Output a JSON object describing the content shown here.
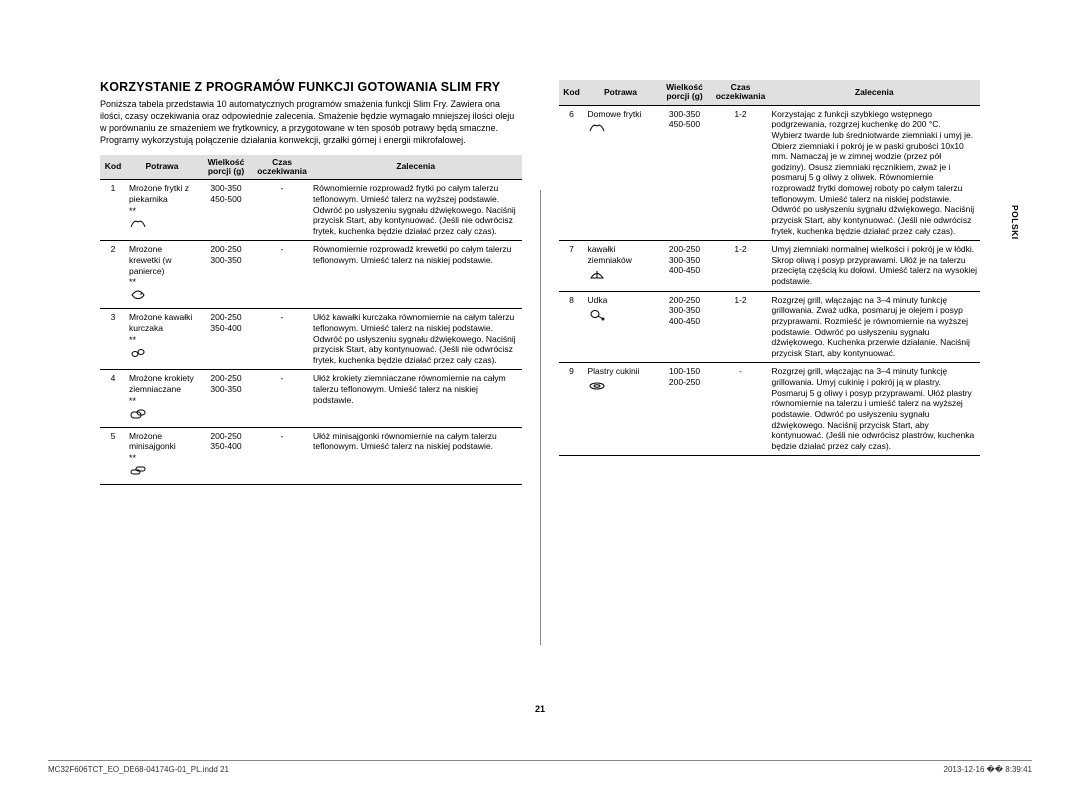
{
  "sideTab": "POLSKI",
  "pageNumber": "21",
  "footer": {
    "left": "MC32F606TCT_EO_DE68-04174G-01_PL.indd   21",
    "right": "2013-12-16   �� 8:39:41"
  },
  "section": {
    "title": "KORZYSTANIE Z PROGRAMÓW FUNKCJI GOTOWANIA SLIM FRY",
    "intro": "Poniższa tabela przedstawia 10 automatycznych programów smażenia funkcji Slim Fry. Zawiera ona ilości, czasy oczekiwania oraz odpowiednie zalecenia. Smażenie będzie wymagało mniejszej ilości oleju w porównaniu ze smażeniem we frytkownicy, a przygotowane w ten sposób potrawy będą smaczne. Programy wykorzystują połączenie działania konwekcji, grzałki górnej i energii mikrofalowej."
  },
  "headers": {
    "kod": "Kod",
    "potrawa": "Potrawa",
    "wielkosc1": "Wielkość",
    "wielkosc2": "porcji (g)",
    "czas1": "Czas",
    "czas2": "oczekiwania",
    "zalecenia": "Zalecenia"
  },
  "rowsLeft": [
    {
      "kod": "1",
      "potrawa": "Mrożone frytki z piekarnika",
      "icon": "fries",
      "star": "**",
      "wielkosc": "300-350\n450-500",
      "czas": "-",
      "zalec": "Równomiernie rozprowadź frytki po całym talerzu teflonowym. Umieść talerz na wyższej podstawie. Odwróć po usłyszeniu sygnału dźwiękowego. Naciśnij przycisk Start, aby kontynuować. (Jeśli nie odwrócisz frytek, kuchenka będzie działać przez cały czas)."
    },
    {
      "kod": "2",
      "potrawa": "Mrożone krewetki (w panierce)",
      "icon": "shrimp",
      "star": "**",
      "wielkosc": "200-250\n300-350",
      "czas": "-",
      "zalec": "Równomiernie rozprowadź krewetki po całym talerzu teflonowym. Umieść talerz na niskiej podstawie."
    },
    {
      "kod": "3",
      "potrawa": "Mrożone kawałki kurczaka",
      "icon": "nuggets",
      "star": "**",
      "wielkosc": "200-250\n350-400",
      "czas": "-",
      "zalec": "Ułóż kawałki kurczaka równomiernie na całym talerzu teflonowym. Umieść talerz na niskiej podstawie. Odwróć po usłyszeniu sygnału dźwiękowego. Naciśnij przycisk Start, aby kontynuować. (Jeśli nie odwrócisz frytek, kuchenka będzie działać przez cały czas)."
    },
    {
      "kod": "4",
      "potrawa": "Mrożone krokiety ziemniaczane",
      "icon": "croquette",
      "star": "**",
      "wielkosc": "200-250\n300-350",
      "czas": "-",
      "zalec": "Ułóż krokiety ziemniaczane równomiernie na całym talerzu teflonowym. Umieść talerz na niskiej podstawie."
    },
    {
      "kod": "5",
      "potrawa": "Mrożone minisajgonki",
      "icon": "rolls",
      "star": "**",
      "wielkosc": "200-250\n350-400",
      "czas": "-",
      "zalec": "Ułóż minisajgonki równomiernie na całym talerzu teflonowym. Umieść talerz na niskiej podstawie."
    }
  ],
  "rowsRight": [
    {
      "kod": "6",
      "potrawa": "Domowe frytki",
      "icon": "fries",
      "star": "",
      "wielkosc": "300-350\n450-500",
      "czas": "1-2",
      "zalec": "Korzystając z funkcji szybkiego wstępnego podgrzewania, rozgrzej kuchenkę do 200 °C.\nWybierz twarde lub średniotwarde ziemniaki i umyj je. Obierz ziemniaki i pokrój je w paski grubości 10x10 mm. Namaczaj je w zimnej wodzie (przez pół godziny). Osusz ziemniaki ręcznikiem, zważ je i posmaruj 5 g oliwy z oliwek. Równomiernie rozprowadź frytki domowej roboty po całym talerzu teflonowym. Umieść talerz na niskiej podstawie. Odwróć po usłyszeniu sygnału dźwiękowego. Naciśnij przycisk Start, aby kontynuować. (Jeśli nie odwrócisz frytek, kuchenka będzie działać przez cały czas)."
    },
    {
      "kod": "7",
      "potrawa": "kawałki ziemniaków",
      "icon": "wedges",
      "star": "",
      "wielkosc": "200-250\n300-350\n400-450",
      "czas": "1-2",
      "zalec": "Umyj ziemniaki normalnej wielkości i pokrój je w łódki. Skrop oliwą i posyp przyprawami. Ułóż je na talerzu przeciętą częścią ku dołowi. Umieść talerz na wysokiej podstawie."
    },
    {
      "kod": "8",
      "potrawa": "Udka",
      "icon": "drumstick",
      "star": "",
      "wielkosc": "200-250\n300-350\n400-450",
      "czas": "1-2",
      "zalec": "Rozgrzej grill, włączając na 3–4 minuty funkcję grillowania. Zważ udka, posmaruj je olejem i posyp przyprawami. Rozmieść je równomiernie na wyższej podstawie. Odwróć po usłyszeniu sygnału dźwiękowego. Kuchenka przerwie działanie. Naciśnij przycisk Start, aby kontynuować."
    },
    {
      "kod": "9",
      "potrawa": "Plastry cukinii",
      "icon": "zucchini",
      "star": "",
      "wielkosc": "100-150\n200-250",
      "czas": "-",
      "zalec": "Rozgrzej grill, włączając na 3–4 minuty funkcję grillowania. Umyj cukinię i pokrój ją w plastry. Posmaruj 5 g oliwy i posyp przyprawami. Ułóż plastry równomiernie na talerzu i umieść talerz na wyższej podstawie. Odwróć po usłyszeniu sygnału dźwiękowego. Naciśnij przycisk Start, aby kontynuować. (Jeśli nie odwrócisz plastrów, kuchenka będzie działać przez cały czas)."
    }
  ]
}
